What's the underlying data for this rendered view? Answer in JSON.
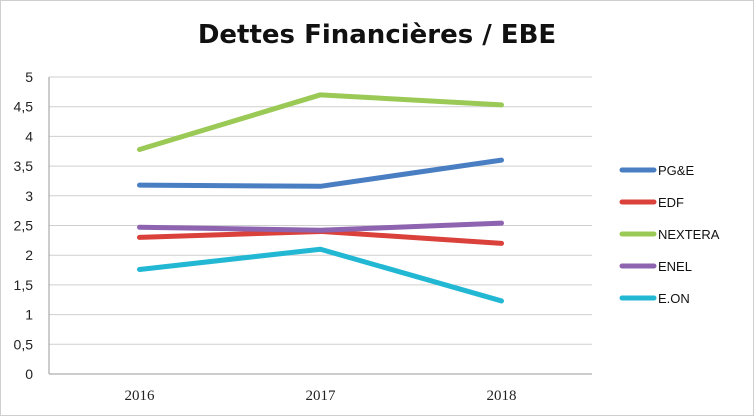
{
  "chart_data": {
    "type": "line",
    "title": "Dettes Financières / EBE",
    "categories": [
      "2016",
      "2017",
      "2018"
    ],
    "yticks": [
      "0",
      "0,5",
      "1",
      "1,5",
      "2",
      "2,5",
      "3",
      "3,5",
      "4",
      "4,5",
      "5"
    ],
    "ylim": [
      0,
      5
    ],
    "grid": true,
    "legend_position": "right",
    "series": [
      {
        "name": "PG&E",
        "color": "#4a7ec2",
        "values": [
          3.18,
          3.16,
          3.6
        ]
      },
      {
        "name": "EDF",
        "color": "#d9413a",
        "values": [
          2.3,
          2.4,
          2.2
        ]
      },
      {
        "name": "NEXTERA",
        "color": "#9bc955",
        "values": [
          3.78,
          4.7,
          4.53
        ]
      },
      {
        "name": "ENEL",
        "color": "#8e64b0",
        "values": [
          2.47,
          2.42,
          2.54
        ]
      },
      {
        "name": "E.ON",
        "color": "#22b7d3",
        "values": [
          1.76,
          2.1,
          1.23
        ]
      }
    ]
  }
}
